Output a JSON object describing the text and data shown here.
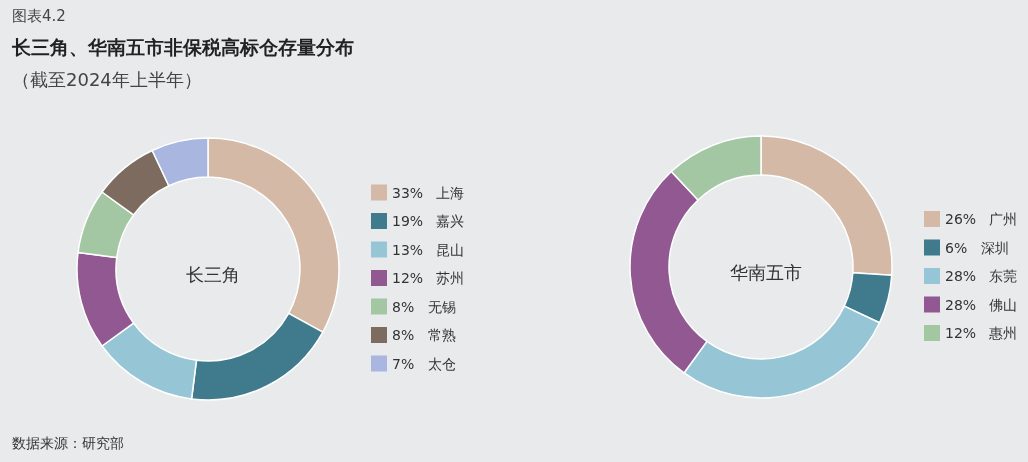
{
  "chart_data": [
    {
      "type": "other",
      "title": "长三角、华南五市非保税高标仓存量分布",
      "subtitle": "（截至2024年上半年）",
      "annotations": [
        "图表4.2",
        "数据来源：研究部"
      ]
    },
    {
      "type": "donut",
      "title": "长三角",
      "categories": [
        "上海",
        "嘉兴",
        "昆山",
        "苏州",
        "无锡",
        "常熟",
        "太仓"
      ],
      "values": [
        33,
        19,
        13,
        12,
        8,
        8,
        7
      ],
      "value_labels": [
        "33%",
        "19%",
        "13%",
        "12%",
        "8%",
        "8%",
        "7%"
      ],
      "colors": [
        "#d3b9a6",
        "#3f7b8c",
        "#96c6d6",
        "#915891",
        "#a3c7a3",
        "#7d6b60",
        "#a9b6df"
      ],
      "legend": "right"
    },
    {
      "type": "donut",
      "title": "华南五市",
      "categories": [
        "广州",
        "深圳",
        "东莞",
        "佛山",
        "惠州"
      ],
      "values": [
        26,
        6,
        28,
        28,
        12
      ],
      "value_labels": [
        "26%",
        "6%",
        "28%",
        "28%",
        "12%"
      ],
      "colors": [
        "#d3b9a6",
        "#3f7b8c",
        "#96c6d6",
        "#915891",
        "#a3c7a3"
      ],
      "legend": "right"
    }
  ]
}
